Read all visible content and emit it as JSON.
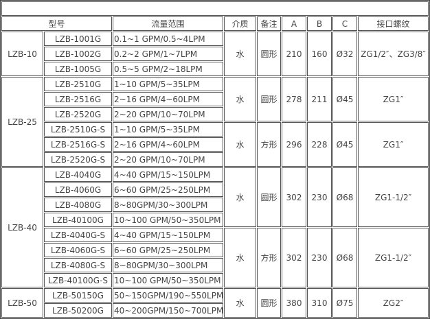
{
  "title": "",
  "headers": [
    "型号",
    "流量范围",
    "介质",
    "备注",
    "A",
    "B",
    "C",
    "接口螺纹"
  ],
  "groups": [
    {
      "series": "LZB-10",
      "blocks": [
        {
          "medium": "水",
          "note": "圆形",
          "A": "210",
          "B": "160",
          "C": "Ø32",
          "thread": "ZG1/2″、ZG3/8″",
          "rows": [
            [
              "LZB-1001G",
              "0.1~1 GPM/0.5~4LPM"
            ],
            [
              "LZB-1002G",
              "0.2~2 GPM/1~7LPM"
            ],
            [
              "LZB-1005G",
              "0.5~5 GPM/2~18LPM"
            ]
          ]
        }
      ]
    },
    {
      "series": "LZB-25",
      "blocks": [
        {
          "medium": "水",
          "note": "圆形",
          "A": "278",
          "B": "211",
          "C": "Ø45",
          "thread": "ZG1″",
          "rows": [
            [
              "LZB-2510G",
              "1~10 GPM/5~35LPM"
            ],
            [
              "LZB-2516G",
              "2~16 GPM/4~60LPM"
            ],
            [
              "LZB-2520G",
              "2~20 GPM/10~70LPM"
            ]
          ]
        },
        {
          "medium": "水",
          "note": "方形",
          "A": "296",
          "B": "228",
          "C": "Ø45",
          "thread": "ZG1″",
          "rows": [
            [
              "LZB-2510G-S",
              "1~10 GPM/5~35LPM"
            ],
            [
              "LZB-2516G-S",
              "2~16 GPM/4~60LPM"
            ],
            [
              "LZB-2520G-S",
              "2~20 GPM/10~70LPM"
            ]
          ]
        }
      ]
    },
    {
      "series": "LZB-40",
      "blocks": [
        {
          "medium": "水",
          "note": "圆形",
          "A": "302",
          "B": "230",
          "C": "Ø68",
          "thread": "ZG1-1/2″",
          "rows": [
            [
              "LZB-4040G",
              "4~40 GPM/15~150LPM"
            ],
            [
              "LZB-4060G",
              "6~60 GPM/25~250LPM"
            ],
            [
              "LZB-4080G",
              "8~80GPM/30~300LPM"
            ],
            [
              "LZB-40100G",
              "10~100 GPM/50~350LPM"
            ]
          ]
        },
        {
          "medium": "水",
          "note": "方形",
          "A": "302",
          "B": "230",
          "C": "Ø68",
          "thread": "ZG1-1/2″",
          "rows": [
            [
              "LZB-4040G-S",
              "4~40 GPM/15~150LPM"
            ],
            [
              "LZB-4060G-S",
              "6~60 GPM/25~250LPM"
            ],
            [
              "LZB-4080G-S",
              "8~80GPM/30~300LPM"
            ],
            [
              "LZB-40100G-S",
              "10~100 GPM/50~350LPM"
            ]
          ]
        }
      ]
    },
    {
      "series": "LZB-50",
      "blocks": [
        {
          "medium": "水",
          "note": "圆形",
          "A": "380",
          "B": "310",
          "C": "Ø75",
          "thread": "ZG2″",
          "rows": [
            [
              "LZB-50150G",
              "50~150GPM/190~550LPM"
            ],
            [
              "LZB-50200G",
              "40~200GPM/150~700LPM"
            ]
          ]
        }
      ]
    }
  ]
}
